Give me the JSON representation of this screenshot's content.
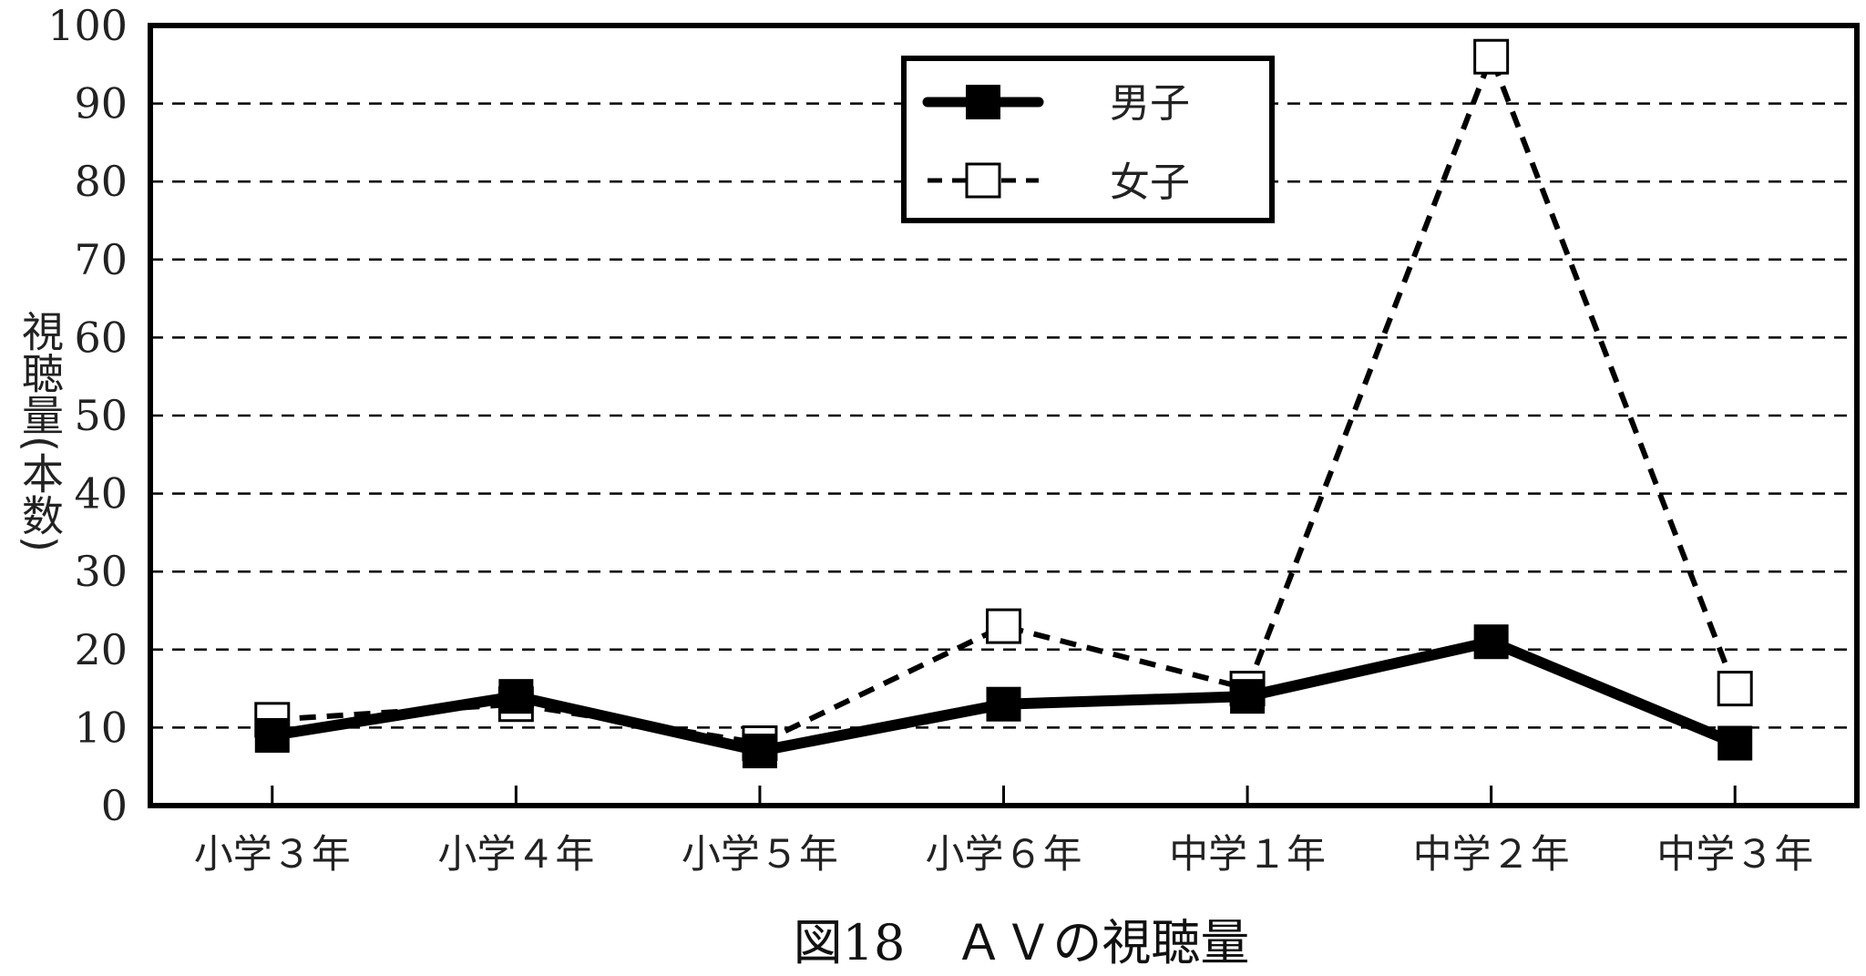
{
  "chart_data": {
    "type": "line",
    "title": "図18　ＡＶの視聴量",
    "xlabel": "",
    "ylabel": "視聴量(本数)",
    "categories": [
      "小学３年",
      "小学４年",
      "小学５年",
      "小学６年",
      "中学１年",
      "中学２年",
      "中学３年"
    ],
    "ylim": [
      0,
      100
    ],
    "yticks": [
      0,
      10,
      20,
      30,
      40,
      50,
      60,
      70,
      80,
      90,
      100
    ],
    "grid": "horizontal-dashed",
    "legend_position": "top-center",
    "series": [
      {
        "name": "男子",
        "values": [
          9,
          14,
          7,
          13,
          14,
          21,
          8
        ],
        "color": "#000000",
        "marker": "filled-square",
        "line": "solid-thick"
      },
      {
        "name": "女子",
        "values": [
          11,
          13,
          8,
          23,
          15,
          96,
          15
        ],
        "color": "#000000",
        "marker": "open-square",
        "line": "dashed"
      }
    ]
  }
}
